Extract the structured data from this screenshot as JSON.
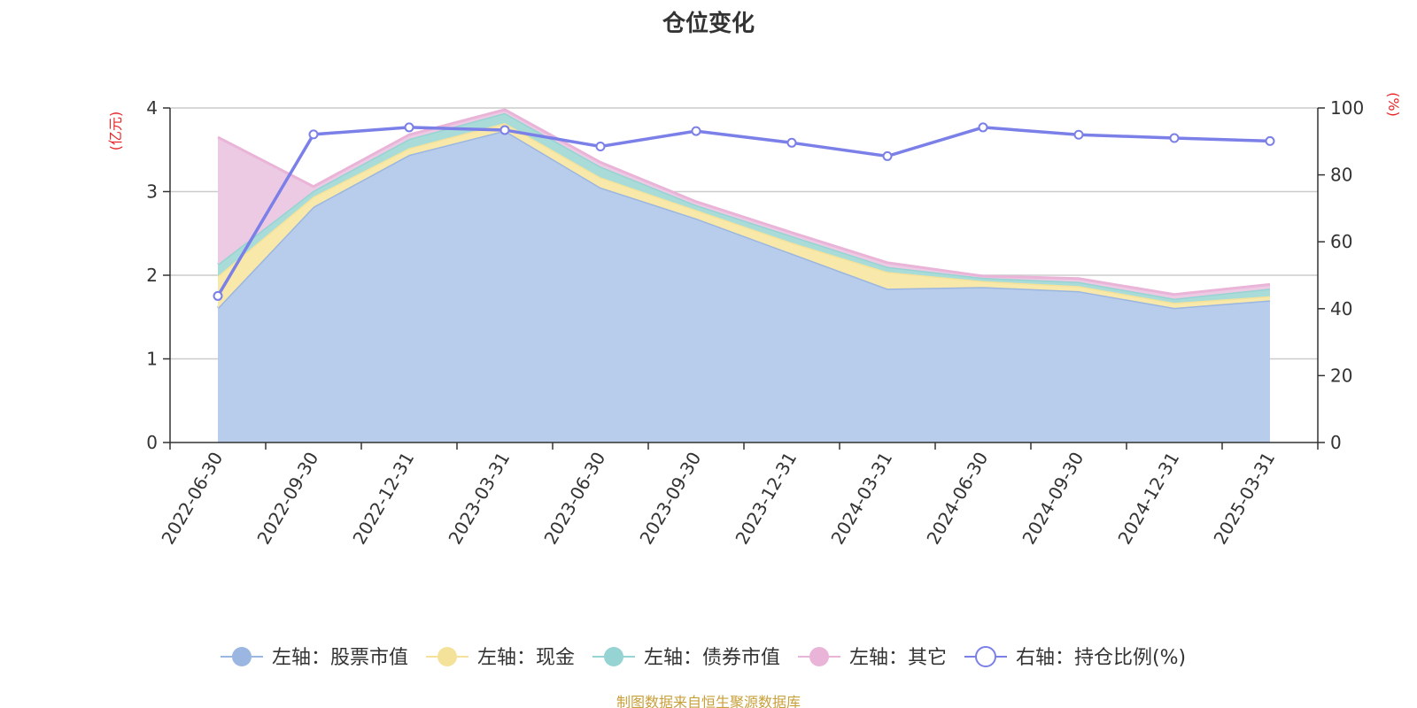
{
  "chart_data": {
    "type": "area",
    "title": "仓位变化",
    "source_note": "制图数据来自恒生聚源数据库",
    "x": [
      "2022-06-30",
      "2022-09-30",
      "2022-12-31",
      "2023-03-31",
      "2023-06-30",
      "2023-09-30",
      "2023-12-31",
      "2024-03-31",
      "2024-06-30",
      "2024-09-30",
      "2024-12-31",
      "2025-03-31"
    ],
    "left_axis": {
      "unit_label": "(亿元)",
      "ylim": [
        0,
        4
      ],
      "ticks": [
        "0",
        "1",
        "2",
        "3",
        "4"
      ]
    },
    "right_axis": {
      "unit_label": "(%)",
      "ylim": [
        0,
        100
      ],
      "ticks": [
        "0",
        "20",
        "40",
        "60",
        "80",
        "100"
      ]
    },
    "grid": true,
    "legend_position": "bottom",
    "stacked": true,
    "series": [
      {
        "name": "左轴：股票市值",
        "axis": "left",
        "kind": "area",
        "color": "#9bb6e0",
        "fill": "#b8cdeb",
        "values": [
          1.61,
          2.82,
          3.44,
          3.73,
          3.05,
          2.68,
          2.26,
          1.84,
          1.86,
          1.81,
          1.61,
          1.7
        ]
      },
      {
        "name": "左轴：现金",
        "axis": "left",
        "kind": "area",
        "color": "#f5e29a",
        "fill": "#f8e8aa",
        "values": [
          0.38,
          0.12,
          0.08,
          0.09,
          0.12,
          0.1,
          0.13,
          0.2,
          0.07,
          0.06,
          0.06,
          0.05
        ]
      },
      {
        "name": "左轴：债券市值",
        "axis": "left",
        "kind": "area",
        "color": "#96d3d3",
        "fill": "#a9dcd9",
        "values": [
          0.14,
          0.07,
          0.11,
          0.12,
          0.13,
          0.06,
          0.08,
          0.06,
          0.04,
          0.05,
          0.05,
          0.09
        ]
      },
      {
        "name": "左轴：其它",
        "axis": "left",
        "kind": "area",
        "color": "#e9b4d8",
        "fill": "#edcae3",
        "values": [
          1.52,
          0.05,
          0.05,
          0.04,
          0.05,
          0.04,
          0.04,
          0.05,
          0.02,
          0.04,
          0.05,
          0.05
        ]
      },
      {
        "name": "右轴：持仓比例(%)",
        "axis": "right",
        "kind": "line",
        "color": "#7b7fe8",
        "values": [
          43.8,
          92.1,
          94.2,
          93.4,
          88.5,
          93.1,
          89.6,
          85.6,
          94.2,
          92.0,
          91.0,
          90.1
        ]
      }
    ]
  }
}
